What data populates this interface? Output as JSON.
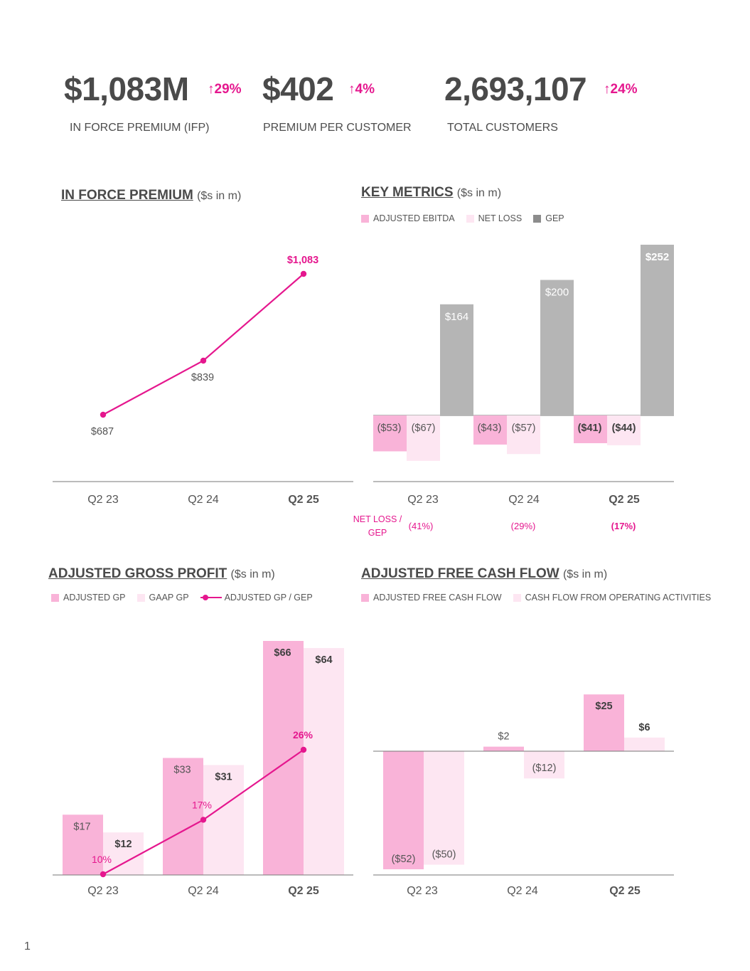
{
  "kpis": [
    {
      "value": "$1,083M",
      "change": "↑29%",
      "label": "IN FORCE PREMIUM (IFP)"
    },
    {
      "value": "$402",
      "change": "↑4%",
      "label": "PREMIUM PER CUSTOMER"
    },
    {
      "value": "2,693,107",
      "change": "↑24%",
      "label": "TOTAL CUSTOMERS"
    }
  ],
  "colors": {
    "pink": "#e5178e",
    "lightpink": "#f9b3d8",
    "palepink": "#fde6f2",
    "gray": "#b5b5b5",
    "axis": "#777777",
    "text": "#555555"
  },
  "sections": {
    "ifp": {
      "title": "IN FORCE PREMIUM",
      "units": "($s in m)"
    },
    "key": {
      "title": "KEY METRICS",
      "units": "($s in m)"
    },
    "agp": {
      "title": "ADJUSTED GROSS PROFIT",
      "units": "($s in m)"
    },
    "afcf": {
      "title": "ADJUSTED FREE CASH FLOW",
      "units": "($s in m)"
    }
  },
  "legends": {
    "key": [
      "ADJUSTED EBITDA",
      "NET LOSS",
      "GEP"
    ],
    "agp": [
      "ADJUSTED GP",
      "GAAP GP",
      "ADJUSTED GP / GEP"
    ],
    "afcf": [
      "ADJUSTED FREE CASH FLOW",
      "CASH FLOW FROM OPERATING ACTIVITIES"
    ]
  },
  "chart_data": [
    {
      "id": "ifp",
      "type": "line",
      "title": "IN FORCE PREMIUM",
      "categories": [
        "Q2 23",
        "Q2 24",
        "Q2 25"
      ],
      "series": [
        {
          "values": [
            687,
            839,
            1083
          ],
          "labels": [
            "$687",
            "$839",
            "$1,083"
          ]
        }
      ]
    },
    {
      "id": "key",
      "type": "bar",
      "title": "KEY METRICS",
      "categories": [
        "Q2 23",
        "Q2 24",
        "Q2 25"
      ],
      "series": [
        {
          "name": "ADJUSTED EBITDA",
          "values": [
            -53,
            -43,
            -41
          ],
          "labels": [
            "($53)",
            "($43)",
            "($41)"
          ]
        },
        {
          "name": "NET LOSS",
          "values": [
            -67,
            -57,
            -44
          ],
          "labels": [
            "($67)",
            "($57)",
            "($44)"
          ]
        },
        {
          "name": "GEP",
          "values": [
            164,
            200,
            252
          ],
          "labels": [
            "$164",
            "$200",
            "$252"
          ]
        }
      ],
      "ratio_label": "NET LOSS / GEP",
      "ratios": [
        "(41%)",
        "(29%)",
        "(17%)"
      ]
    },
    {
      "id": "agp",
      "type": "bar",
      "title": "ADJUSTED GROSS PROFIT",
      "categories": [
        "Q2 23",
        "Q2 24",
        "Q2 25"
      ],
      "series": [
        {
          "name": "ADJUSTED GP",
          "values": [
            17,
            33,
            66
          ],
          "labels": [
            "$17",
            "$33",
            "$66"
          ]
        },
        {
          "name": "GAAP GP",
          "values": [
            12,
            31,
            64
          ],
          "labels": [
            "$12",
            "$31",
            "$64"
          ]
        },
        {
          "name": "ADJUSTED GP / GEP",
          "type": "line",
          "values": [
            10,
            17,
            26
          ],
          "labels": [
            "10%",
            "17%",
            "26%"
          ]
        }
      ]
    },
    {
      "id": "afcf",
      "type": "bar",
      "title": "ADJUSTED FREE CASH FLOW",
      "categories": [
        "Q2 23",
        "Q2 24",
        "Q2 25"
      ],
      "series": [
        {
          "name": "ADJUSTED FREE CASH FLOW",
          "values": [
            -52,
            2,
            25
          ],
          "labels": [
            "($52)",
            "$2",
            "$25"
          ]
        },
        {
          "name": "CASH FLOW FROM OPERATING ACTIVITIES",
          "values": [
            -50,
            -12,
            6
          ],
          "labels": [
            "($50)",
            "($12)",
            "$6"
          ]
        }
      ]
    }
  ],
  "page_number": "1"
}
